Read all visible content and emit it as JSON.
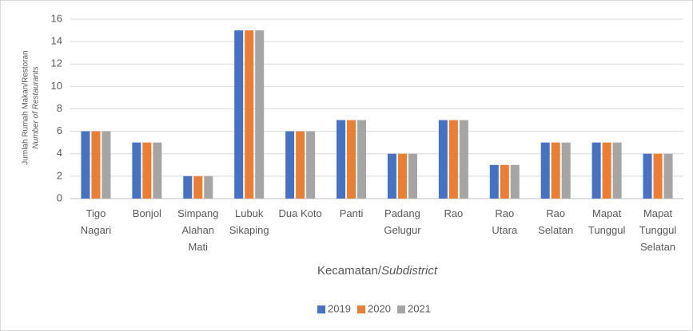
{
  "chart_data": {
    "type": "bar",
    "y_label": [
      "Jumlah Rumah Makan/Restoran",
      "Number of Restaurants"
    ],
    "x_label": {
      "text": "Kecamatan/",
      "italic": "Subdistrict"
    },
    "categories": [
      "Tigo\nNagari",
      "Bonjol",
      "Simpang\nAlahan\nMati",
      "Lubuk\nSikaping",
      "Dua Koto",
      "Panti",
      "Padang\nGelugur",
      "Rao",
      "Rao\nUtara",
      "Rao\nSelatan",
      "Mapat\nTunggul",
      "Mapat\nTunggul\nSelatan"
    ],
    "series": [
      {
        "name": "2019",
        "color": "#4472c4",
        "values": [
          6,
          5,
          2,
          15,
          6,
          7,
          4,
          7,
          3,
          5,
          5,
          4
        ]
      },
      {
        "name": "2020",
        "color": "#ed7d31",
        "values": [
          6,
          5,
          2,
          15,
          6,
          7,
          4,
          7,
          3,
          5,
          5,
          4
        ]
      },
      {
        "name": "2021",
        "color": "#a5a5a5",
        "values": [
          6,
          5,
          2,
          15,
          6,
          7,
          4,
          7,
          3,
          5,
          5,
          4
        ]
      }
    ],
    "ylim": [
      0,
      16
    ],
    "yticks": [
      0,
      2,
      4,
      6,
      8,
      10,
      12,
      14,
      16
    ],
    "grid": true,
    "legend": "bottom"
  }
}
